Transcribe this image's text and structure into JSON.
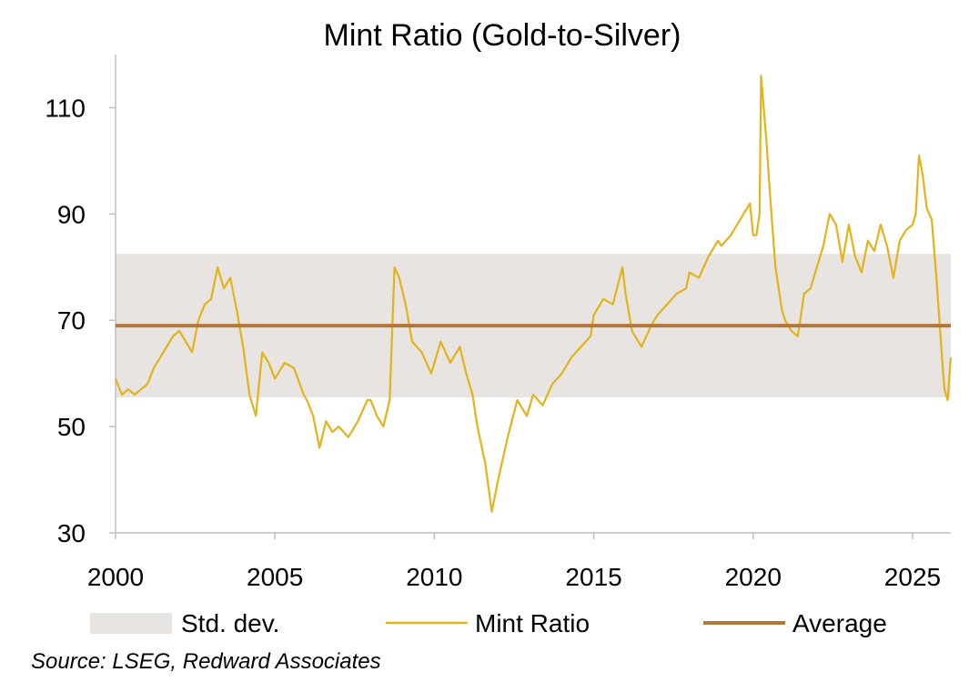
{
  "chart_data": {
    "type": "line",
    "title": "Mint Ratio (Gold-to-Silver)",
    "xlabel": "",
    "ylabel": "",
    "xlim": [
      2000,
      2026.2
    ],
    "ylim": [
      30,
      120
    ],
    "x_ticks": [
      2000,
      2005,
      2010,
      2015,
      2020,
      2025
    ],
    "y_ticks": [
      30,
      50,
      70,
      90,
      110
    ],
    "x_tick_labels": [
      "2000",
      "2005",
      "2010",
      "2015",
      "2020",
      "2025"
    ],
    "y_tick_labels": [
      "30",
      "50",
      "70",
      "90",
      "110"
    ],
    "grid": false,
    "legend_position": "bottom",
    "band": {
      "name": "Std. dev.",
      "low": 55.5,
      "high": 82.5,
      "color": "#e7e4e1"
    },
    "average": {
      "name": "Average",
      "value": 69,
      "color": "#b5763a"
    },
    "series": [
      {
        "name": "Mint Ratio",
        "color": "#e2b31b",
        "x": [
          2000.0,
          2000.2,
          2000.4,
          2000.6,
          2000.8,
          2001.0,
          2001.2,
          2001.4,
          2001.6,
          2001.8,
          2002.0,
          2002.2,
          2002.4,
          2002.6,
          2002.8,
          2003.0,
          2003.2,
          2003.4,
          2003.6,
          2003.8,
          2004.0,
          2004.2,
          2004.4,
          2004.6,
          2004.8,
          2005.0,
          2005.3,
          2005.6,
          2005.9,
          2006.0,
          2006.2,
          2006.4,
          2006.6,
          2006.8,
          2007.0,
          2007.3,
          2007.6,
          2007.9,
          2008.0,
          2008.2,
          2008.4,
          2008.6,
          2008.75,
          2008.9,
          2009.1,
          2009.3,
          2009.6,
          2009.9,
          2010.2,
          2010.5,
          2010.8,
          2011.0,
          2011.2,
          2011.35,
          2011.6,
          2011.8,
          2012.0,
          2012.3,
          2012.6,
          2012.9,
          2013.1,
          2013.4,
          2013.7,
          2014.0,
          2014.3,
          2014.6,
          2014.9,
          2015.0,
          2015.3,
          2015.6,
          2015.9,
          2016.0,
          2016.2,
          2016.5,
          2016.8,
          2017.0,
          2017.3,
          2017.6,
          2017.9,
          2018.0,
          2018.3,
          2018.6,
          2018.9,
          2019.0,
          2019.3,
          2019.6,
          2019.9,
          2020.0,
          2020.1,
          2020.2,
          2020.25,
          2020.4,
          2020.55,
          2020.7,
          2020.9,
          2021.0,
          2021.2,
          2021.4,
          2021.6,
          2021.8,
          2022.0,
          2022.2,
          2022.4,
          2022.6,
          2022.8,
          2023.0,
          2023.2,
          2023.4,
          2023.6,
          2023.8,
          2024.0,
          2024.2,
          2024.4,
          2024.6,
          2024.8,
          2025.0,
          2025.1,
          2025.2,
          2025.3,
          2025.45,
          2025.6,
          2025.75,
          2025.9,
          2026.0,
          2026.1,
          2026.2
        ],
        "values": [
          59,
          56,
          57,
          56,
          57,
          58,
          61,
          63,
          65,
          67,
          68,
          66,
          64,
          70,
          73,
          74,
          80,
          76,
          78,
          72,
          65,
          56,
          52,
          64,
          62,
          59,
          62,
          61,
          56,
          55,
          52,
          46,
          51,
          49,
          50,
          48,
          51,
          55,
          55,
          52,
          50,
          55,
          80,
          78,
          73,
          66,
          64,
          60,
          66,
          62,
          65,
          60,
          56,
          50,
          43,
          34,
          40,
          48,
          55,
          52,
          56,
          54,
          58,
          60,
          63,
          65,
          67,
          71,
          74,
          73,
          80,
          75,
          68,
          65,
          69,
          71,
          73,
          75,
          76,
          79,
          78,
          82,
          85,
          84,
          86,
          89,
          92,
          86,
          86,
          90,
          116,
          105,
          92,
          80,
          72,
          70,
          68,
          67,
          75,
          76,
          80,
          84,
          90,
          88,
          81,
          88,
          82,
          79,
          85,
          83,
          88,
          84,
          78,
          85,
          87,
          88,
          90,
          101,
          98,
          91,
          89,
          78,
          65,
          57,
          55,
          63
        ]
      }
    ]
  },
  "source_note": "Source: LSEG, Redward Associates"
}
